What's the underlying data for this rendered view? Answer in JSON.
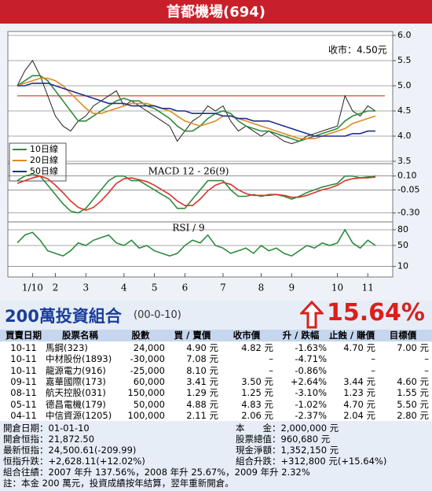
{
  "title": "首都機場(694)",
  "chart_data": [
    {
      "type": "line",
      "annotation": "收市：4.50元",
      "categories": [
        null,
        null,
        "1/10",
        null,
        null,
        "2",
        null,
        null,
        null,
        "3",
        null,
        null,
        null,
        null,
        "4",
        null,
        null,
        null,
        "5",
        null,
        null,
        null,
        "6",
        null,
        null,
        null,
        null,
        "7",
        null,
        null,
        null,
        null,
        "8",
        null,
        null,
        null,
        "9",
        null,
        null,
        null,
        null,
        null,
        "10",
        null,
        null,
        null,
        "11",
        null
      ],
      "ylim": [
        3.5,
        6.0
      ],
      "yticks": [
        {
          "value": 6.0,
          "label": "6.0"
        },
        {
          "value": 5.5,
          "label": "5.5"
        },
        {
          "value": 5.0,
          "label": "5.0"
        },
        {
          "value": 4.5,
          "label": "4.5"
        },
        {
          "value": 4.0,
          "label": "4.0"
        },
        {
          "value": 3.5,
          "label": "3.5"
        }
      ],
      "grid": true,
      "hline": 4.8,
      "hline_color": "#d9342b",
      "series": [
        {
          "color": "#222222",
          "values": [
            5.0,
            5.3,
            5.5,
            5.2,
            4.8,
            4.4,
            4.2,
            4.1,
            4.3,
            4.4,
            4.6,
            4.7,
            4.8,
            4.9,
            4.6,
            4.7,
            4.6,
            4.5,
            4.4,
            4.3,
            4.2,
            3.9,
            4.1,
            4.3,
            4.4,
            4.6,
            4.5,
            4.6,
            4.3,
            4.1,
            4.2,
            4.1,
            4.0,
            4.1,
            4.0,
            3.9,
            3.85,
            3.9,
            4.0,
            4.05,
            4.1,
            4.15,
            4.2,
            4.8,
            4.5,
            4.4,
            4.6,
            4.5
          ]
        },
        {
          "name": "10日線",
          "color": "#2e8b3e",
          "values": [
            5.0,
            5.1,
            5.2,
            5.2,
            5.1,
            4.9,
            4.7,
            4.5,
            4.3,
            4.3,
            4.4,
            4.5,
            4.6,
            4.7,
            4.75,
            4.7,
            4.7,
            4.6,
            4.55,
            4.45,
            4.35,
            4.2,
            4.1,
            4.1,
            4.2,
            4.35,
            4.45,
            4.5,
            4.45,
            4.3,
            4.2,
            4.15,
            4.1,
            4.1,
            4.05,
            4.0,
            3.95,
            3.9,
            3.95,
            4.0,
            4.05,
            4.1,
            4.15,
            4.3,
            4.4,
            4.45,
            4.5,
            4.5
          ]
        },
        {
          "name": "20日線",
          "color": "#e08a1e",
          "values": [
            5.0,
            5.05,
            5.1,
            5.15,
            5.15,
            5.1,
            5.0,
            4.85,
            4.7,
            4.55,
            4.45,
            4.45,
            4.5,
            4.55,
            4.6,
            4.65,
            4.65,
            4.65,
            4.6,
            4.55,
            4.5,
            4.4,
            4.3,
            4.25,
            4.2,
            4.25,
            4.3,
            4.4,
            4.4,
            4.35,
            4.3,
            4.25,
            4.2,
            4.15,
            4.1,
            4.05,
            4.0,
            3.95,
            3.95,
            3.95,
            4.0,
            4.05,
            4.1,
            4.15,
            4.25,
            4.3,
            4.35,
            4.4
          ]
        },
        {
          "name": "50日線",
          "color": "#1f2f8f",
          "values": [
            5.0,
            5.0,
            5.05,
            5.05,
            5.05,
            5.0,
            4.95,
            4.9,
            4.85,
            4.8,
            4.75,
            4.7,
            4.65,
            4.65,
            4.65,
            4.6,
            4.6,
            4.6,
            4.6,
            4.55,
            4.55,
            4.5,
            4.5,
            4.45,
            4.45,
            4.45,
            4.45,
            4.4,
            4.4,
            4.35,
            4.35,
            4.3,
            4.3,
            4.3,
            4.25,
            4.2,
            4.15,
            4.1,
            4.05,
            4.0,
            4.0,
            4.0,
            4.0,
            4.0,
            4.05,
            4.05,
            4.1,
            4.1
          ]
        }
      ]
    },
    {
      "type": "line",
      "title": "MACD 12 - 26(9)",
      "ylim": [
        -0.38,
        0.2
      ],
      "grid": true,
      "yticks": [
        {
          "value": 0.1,
          "label": "0.10"
        },
        {
          "value": -0.05,
          "label": "-0.05"
        },
        {
          "value": -0.3,
          "label": "-0.30"
        }
      ],
      "series": [
        {
          "color": "#2e8b3e",
          "values": [
            0.05,
            0.1,
            0.12,
            0.1,
            0.0,
            -0.1,
            -0.2,
            -0.28,
            -0.3,
            -0.25,
            -0.15,
            -0.05,
            0.05,
            0.1,
            0.1,
            0.05,
            0.05,
            0.0,
            -0.05,
            -0.1,
            -0.15,
            -0.25,
            -0.25,
            -0.15,
            -0.05,
            0.05,
            0.05,
            0.05,
            -0.05,
            -0.12,
            -0.12,
            -0.1,
            -0.12,
            -0.1,
            -0.1,
            -0.12,
            -0.15,
            -0.12,
            -0.08,
            -0.05,
            -0.02,
            0.0,
            0.02,
            0.1,
            0.1,
            0.08,
            0.09,
            0.1
          ]
        },
        {
          "color": "#d9342b",
          "values": [
            0.02,
            0.05,
            0.08,
            0.1,
            0.07,
            0.0,
            -0.08,
            -0.17,
            -0.24,
            -0.27,
            -0.24,
            -0.17,
            -0.08,
            0.02,
            0.07,
            0.08,
            0.06,
            0.04,
            0.0,
            -0.05,
            -0.1,
            -0.17,
            -0.22,
            -0.22,
            -0.15,
            -0.06,
            0.0,
            0.03,
            0.01,
            -0.05,
            -0.09,
            -0.11,
            -0.11,
            -0.11,
            -0.1,
            -0.11,
            -0.13,
            -0.13,
            -0.11,
            -0.08,
            -0.05,
            -0.03,
            0.0,
            0.05,
            0.07,
            0.08,
            0.08,
            0.09
          ]
        }
      ]
    },
    {
      "type": "line",
      "title": "RSI / 9",
      "ylim": [
        -7,
        92
      ],
      "grid": true,
      "yticks": [
        80,
        50,
        10
      ],
      "series": [
        {
          "color": "#2e8b3e",
          "values": [
            55,
            70,
            75,
            60,
            40,
            35,
            30,
            40,
            55,
            50,
            60,
            65,
            70,
            55,
            50,
            60,
            45,
            50,
            40,
            35,
            30,
            35,
            50,
            60,
            55,
            70,
            50,
            45,
            35,
            40,
            45,
            35,
            50,
            40,
            45,
            35,
            30,
            40,
            50,
            45,
            55,
            50,
            55,
            80,
            55,
            45,
            60,
            50
          ]
        }
      ]
    }
  ],
  "portfolio": {
    "title": "200萬投資組合",
    "date": "(00-0-10)",
    "return": "15.64%"
  },
  "table": {
    "header": [
      "買賣日期",
      "股票名稱",
      "股數",
      "買 / 賣價",
      "收市價",
      "升 / 跌幅",
      "止蝕 / 賺價",
      "目標價"
    ],
    "rows": [
      [
        "10-11",
        "馬鋼(323)",
        "24,000",
        "4.90 元",
        "4.82 元",
        "-1.63%",
        "4.70 元",
        "7.00 元"
      ],
      [
        "10-11",
        "中材股份(1893)",
        "-30,000",
        "7.08 元",
        "–",
        "-4.71%",
        "–",
        "–"
      ],
      [
        "10-11",
        "龍源電力(916)",
        "-25,000",
        "8.10 元",
        "–",
        "-0.86%",
        "–",
        "–"
      ],
      [
        "09-11",
        "嘉華國際(173)",
        "60,000",
        "3.41 元",
        "3.50 元",
        "+2.64%",
        "3.44 元",
        "4.60 元"
      ],
      [
        "08-11",
        "航天控股(031)",
        "150,000",
        "1.29 元",
        "1.25 元",
        "-3.10%",
        "1.23 元",
        "1.55 元"
      ],
      [
        "05-11",
        "德昌電機(179)",
        "50,000",
        "4.88 元",
        "4.83 元",
        "-1.02%",
        "4.70 元",
        "5.50 元"
      ],
      [
        "04-11",
        "中信資源(1205)",
        "100,000",
        "2.11 元",
        "2.06 元",
        "-2.37%",
        "2.04 元",
        "2.80 元"
      ]
    ]
  },
  "summary": {
    "left": [
      "開倉日期：01-01-10",
      "開倉恒指：21,872.50",
      "最新恒指：24,500.61(-209.99)",
      "恒指升跌：+2,628.11(+12.02%)"
    ],
    "right": [
      "本　　金：2,000,000 元",
      "股票總值：960,680 元",
      "現金淨額：1,352,150 元",
      "組合升跌：+312,800 元(+15.64%)"
    ],
    "lines": [
      "組合往績：2007 年升 137.56%，2008 年升 25.67%，2009 年升 2.32%",
      "註：本金 200 萬元，投資成績按年結算，翌年重新開倉。"
    ]
  }
}
